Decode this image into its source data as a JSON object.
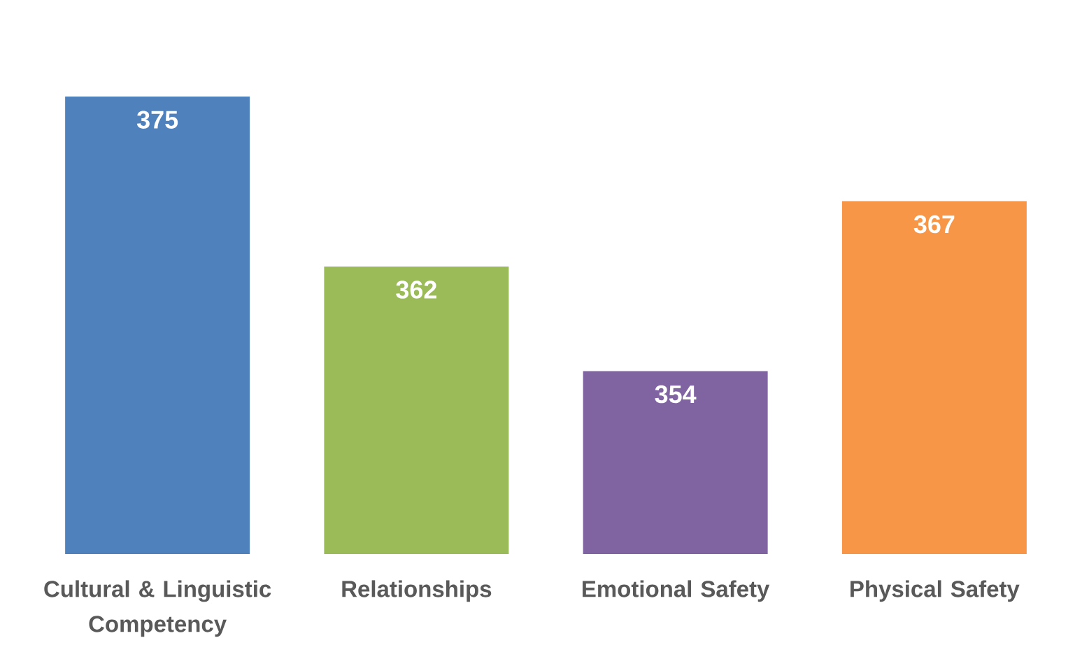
{
  "chart_data": {
    "type": "bar",
    "categories": [
      "Cultural & Linguistic Competency",
      "Relationships",
      "Emotional Safety",
      "Physical Safety"
    ],
    "values": [
      375,
      362,
      354,
      367
    ],
    "colors": [
      "#4f81bd",
      "#9bbb59",
      "#8064a2",
      "#f79646"
    ],
    "ylim": [
      340,
      375
    ],
    "data_labels": true,
    "tick_labels": "x"
  }
}
